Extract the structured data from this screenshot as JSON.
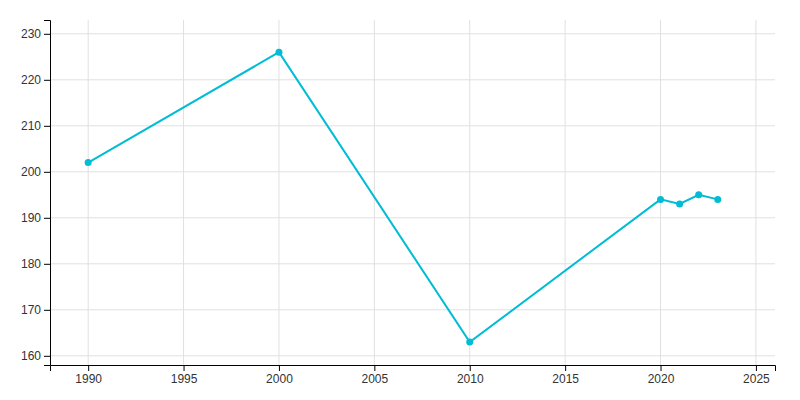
{
  "chart_data": {
    "type": "line",
    "x": [
      1990,
      2000,
      2010,
      2020,
      2021,
      2022,
      2023
    ],
    "values": [
      202,
      226,
      163,
      194,
      193,
      195,
      194
    ],
    "color": "#00bcd4",
    "marker": "circle",
    "xlim": [
      1988,
      2026
    ],
    "ylim": [
      158,
      233
    ],
    "xticks": [
      1990,
      1995,
      2000,
      2005,
      2010,
      2015,
      2020,
      2025
    ],
    "yticks": [
      160,
      170,
      180,
      190,
      200,
      210,
      220,
      230
    ],
    "grid": true
  }
}
